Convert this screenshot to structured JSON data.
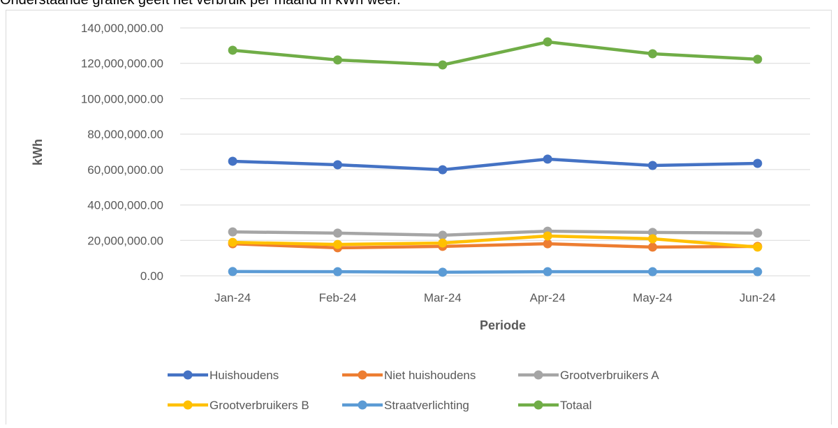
{
  "caption": "Onderstaande grafiek geeft het verbruik per maand in kWh weer.",
  "chart_data": {
    "type": "line",
    "y_label": "kWh",
    "x_label": "Periode",
    "categories": [
      "Jan-24",
      "Feb-24",
      "Mar-24",
      "Apr-24",
      "May-24",
      "Jun-24"
    ],
    "ylim": [
      0,
      140000000
    ],
    "yticks": [
      {
        "value": 0,
        "label": "0.00"
      },
      {
        "value": 20000000,
        "label": "20,000,000.00"
      },
      {
        "value": 40000000,
        "label": "40,000,000.00"
      },
      {
        "value": 60000000,
        "label": "60,000,000.00"
      },
      {
        "value": 80000000,
        "label": "80,000,000.00"
      },
      {
        "value": 100000000,
        "label": "100,000,000.00"
      },
      {
        "value": 120000000,
        "label": "120,000,000.00"
      },
      {
        "value": 140000000,
        "label": "140,000,000.00"
      }
    ],
    "grid": true,
    "legend": "bottom",
    "series": [
      {
        "name": "Huishoudens",
        "color": "#4472c4",
        "values": [
          64700000,
          62700000,
          59900000,
          65900000,
          62300000,
          63500000
        ]
      },
      {
        "name": "Niet huishoudens",
        "color": "#ed7d31",
        "values": [
          18100000,
          15800000,
          16600000,
          18100000,
          16200000,
          16600000
        ]
      },
      {
        "name": "Grootverbruikers A",
        "color": "#a5a5a5",
        "values": [
          24800000,
          24100000,
          22900000,
          25200000,
          24500000,
          24100000
        ]
      },
      {
        "name": "Grootverbruikers B",
        "color": "#ffc000",
        "values": [
          18900000,
          17700000,
          18500000,
          22500000,
          20900000,
          16200000
        ]
      },
      {
        "name": "Straatverlichting",
        "color": "#5b9bd5",
        "values": [
          2400000,
          2300000,
          2000000,
          2300000,
          2300000,
          2300000
        ]
      },
      {
        "name": "Totaal",
        "color": "#70ad47",
        "values": [
          127400000,
          121900000,
          119100000,
          132100000,
          125400000,
          122300000
        ]
      }
    ]
  }
}
